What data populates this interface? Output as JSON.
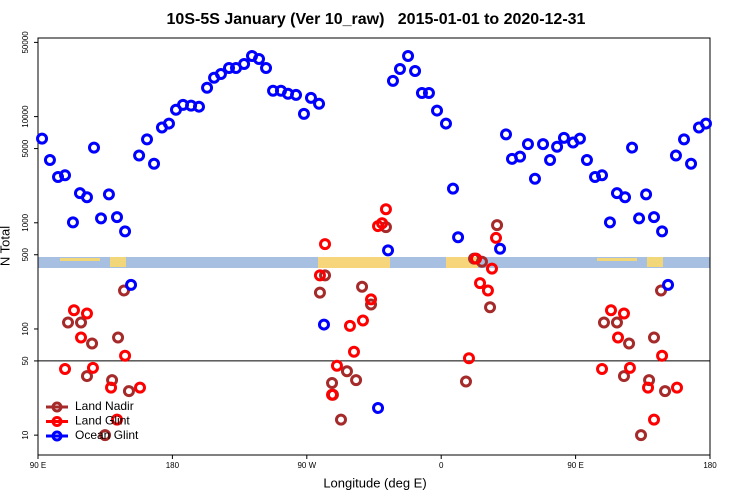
{
  "chart_data": {
    "type": "scatter",
    "title": "10S-5S January (Ver 10_raw)   2015-01-01 to 2020-12-31",
    "x_label": "Longitude (deg E)",
    "y_label": "N Total",
    "log_y": true,
    "hline": 50,
    "legend": "bottom-left",
    "xlim": [
      90,
      540
    ],
    "xticks": [
      {
        "value": 90,
        "label": "90 E"
      },
      180,
      {
        "value": 270,
        "label": "90 W"
      },
      {
        "value": 360,
        "label": "0"
      },
      {
        "value": 450,
        "label": "90 E"
      },
      {
        "value": 540,
        "label": "180"
      }
    ],
    "ylim": [
      6.5,
      55000
    ],
    "yticks": [
      10,
      50,
      100,
      500,
      1000,
      5000,
      10000,
      50000
    ],
    "series": [
      {
        "name": "Land Nadir",
        "color": "#a52a2a",
        "x": [
          110.1,
          118.8,
          122.8,
          126.2,
          134.9,
          139.6,
          143.6,
          147.6,
          150.9,
          278.8,
          282.2,
          286.9,
          287.5,
          292.9,
          296.9,
          303.0,
          307.0,
          313.0,
          323.0,
          376.6,
          382.0,
          387.3,
          392.7,
          397.4,
          469.0,
          477.7,
          482.4,
          485.8,
          493.8,
          499.2,
          502.5,
          507.2,
          509.9
        ],
        "values": [
          115,
          115,
          36,
          73,
          10,
          33,
          83,
          230,
          26,
          220,
          320,
          31,
          24,
          14,
          40,
          33,
          250,
          170,
          910,
          32,
          460,
          430,
          160,
          950,
          115,
          115,
          36,
          73,
          10,
          33,
          83,
          230,
          26
        ]
      },
      {
        "name": "Land Glint",
        "color": "#ff0000",
        "x": [
          108.1,
          114.1,
          118.8,
          122.8,
          126.8,
          138.9,
          142.9,
          148.3,
          158.3,
          278.8,
          282.2,
          286.9,
          290.2,
          298.9,
          301.6,
          307.6,
          313.0,
          317.7,
          320.4,
          323.0,
          378.6,
          383.3,
          386.0,
          391.3,
          394.0,
          396.7,
          467.7,
          473.7,
          478.4,
          482.4,
          486.4,
          498.5,
          502.5,
          507.9,
          517.9
        ],
        "values": [
          42,
          150,
          83,
          140,
          43,
          28,
          14,
          56,
          28,
          320,
          630,
          24,
          45,
          107,
          61,
          120,
          190,
          930,
          990,
          1340,
          53,
          460,
          270,
          230,
          370,
          720,
          42,
          150,
          83,
          140,
          43,
          28,
          14,
          56,
          28
        ]
      },
      {
        "name": "Ocean Glint",
        "color": "#0000ff",
        "x": [
          92.7,
          98.0,
          103.4,
          108.1,
          113.4,
          118.1,
          122.8,
          127.5,
          132.2,
          137.5,
          142.9,
          148.3,
          152.3,
          157.7,
          163.0,
          167.7,
          173.0,
          177.7,
          182.4,
          187.1,
          192.5,
          197.8,
          203.2,
          207.9,
          212.5,
          217.9,
          222.6,
          228.0,
          233.3,
          238.0,
          242.7,
          247.4,
          252.7,
          257.4,
          262.8,
          268.1,
          272.8,
          278.2,
          281.5,
          317.7,
          324.4,
          327.7,
          332.4,
          337.8,
          342.5,
          347.1,
          351.8,
          357.2,
          363.2,
          367.9,
          371.3,
          399.4,
          403.4,
          407.4,
          412.8,
          418.1,
          422.8,
          428.2,
          432.9,
          437.6,
          442.2,
          448.3,
          452.9,
          457.6,
          463.0,
          467.7,
          473.0,
          477.7,
          483.1,
          487.8,
          492.5,
          497.2,
          502.5,
          507.9,
          511.9,
          517.2,
          522.6,
          527.3,
          532.6,
          537.3
        ],
        "values": [
          6200,
          3900,
          2700,
          2800,
          1010,
          1900,
          1740,
          5100,
          1100,
          1850,
          1130,
          830,
          260,
          4300,
          6100,
          3600,
          7900,
          8600,
          11600,
          12900,
          12700,
          12400,
          18700,
          23200,
          25200,
          28700,
          28700,
          31300,
          37200,
          34900,
          28700,
          17500,
          17500,
          16400,
          16000,
          10600,
          15000,
          13200,
          110,
          18,
          550,
          21700,
          28100,
          37200,
          26900,
          16700,
          16700,
          11400,
          8600,
          2100,
          730,
          570,
          6800,
          4000,
          4200,
          5500,
          2600,
          5500,
          3900,
          5200,
          6300,
          5700,
          6200,
          3900,
          2700,
          2800,
          1010,
          1900,
          1740,
          5100,
          1100,
          1850,
          1130,
          830,
          260,
          4300,
          6100,
          3600,
          7900,
          8600
        ]
      }
    ]
  }
}
